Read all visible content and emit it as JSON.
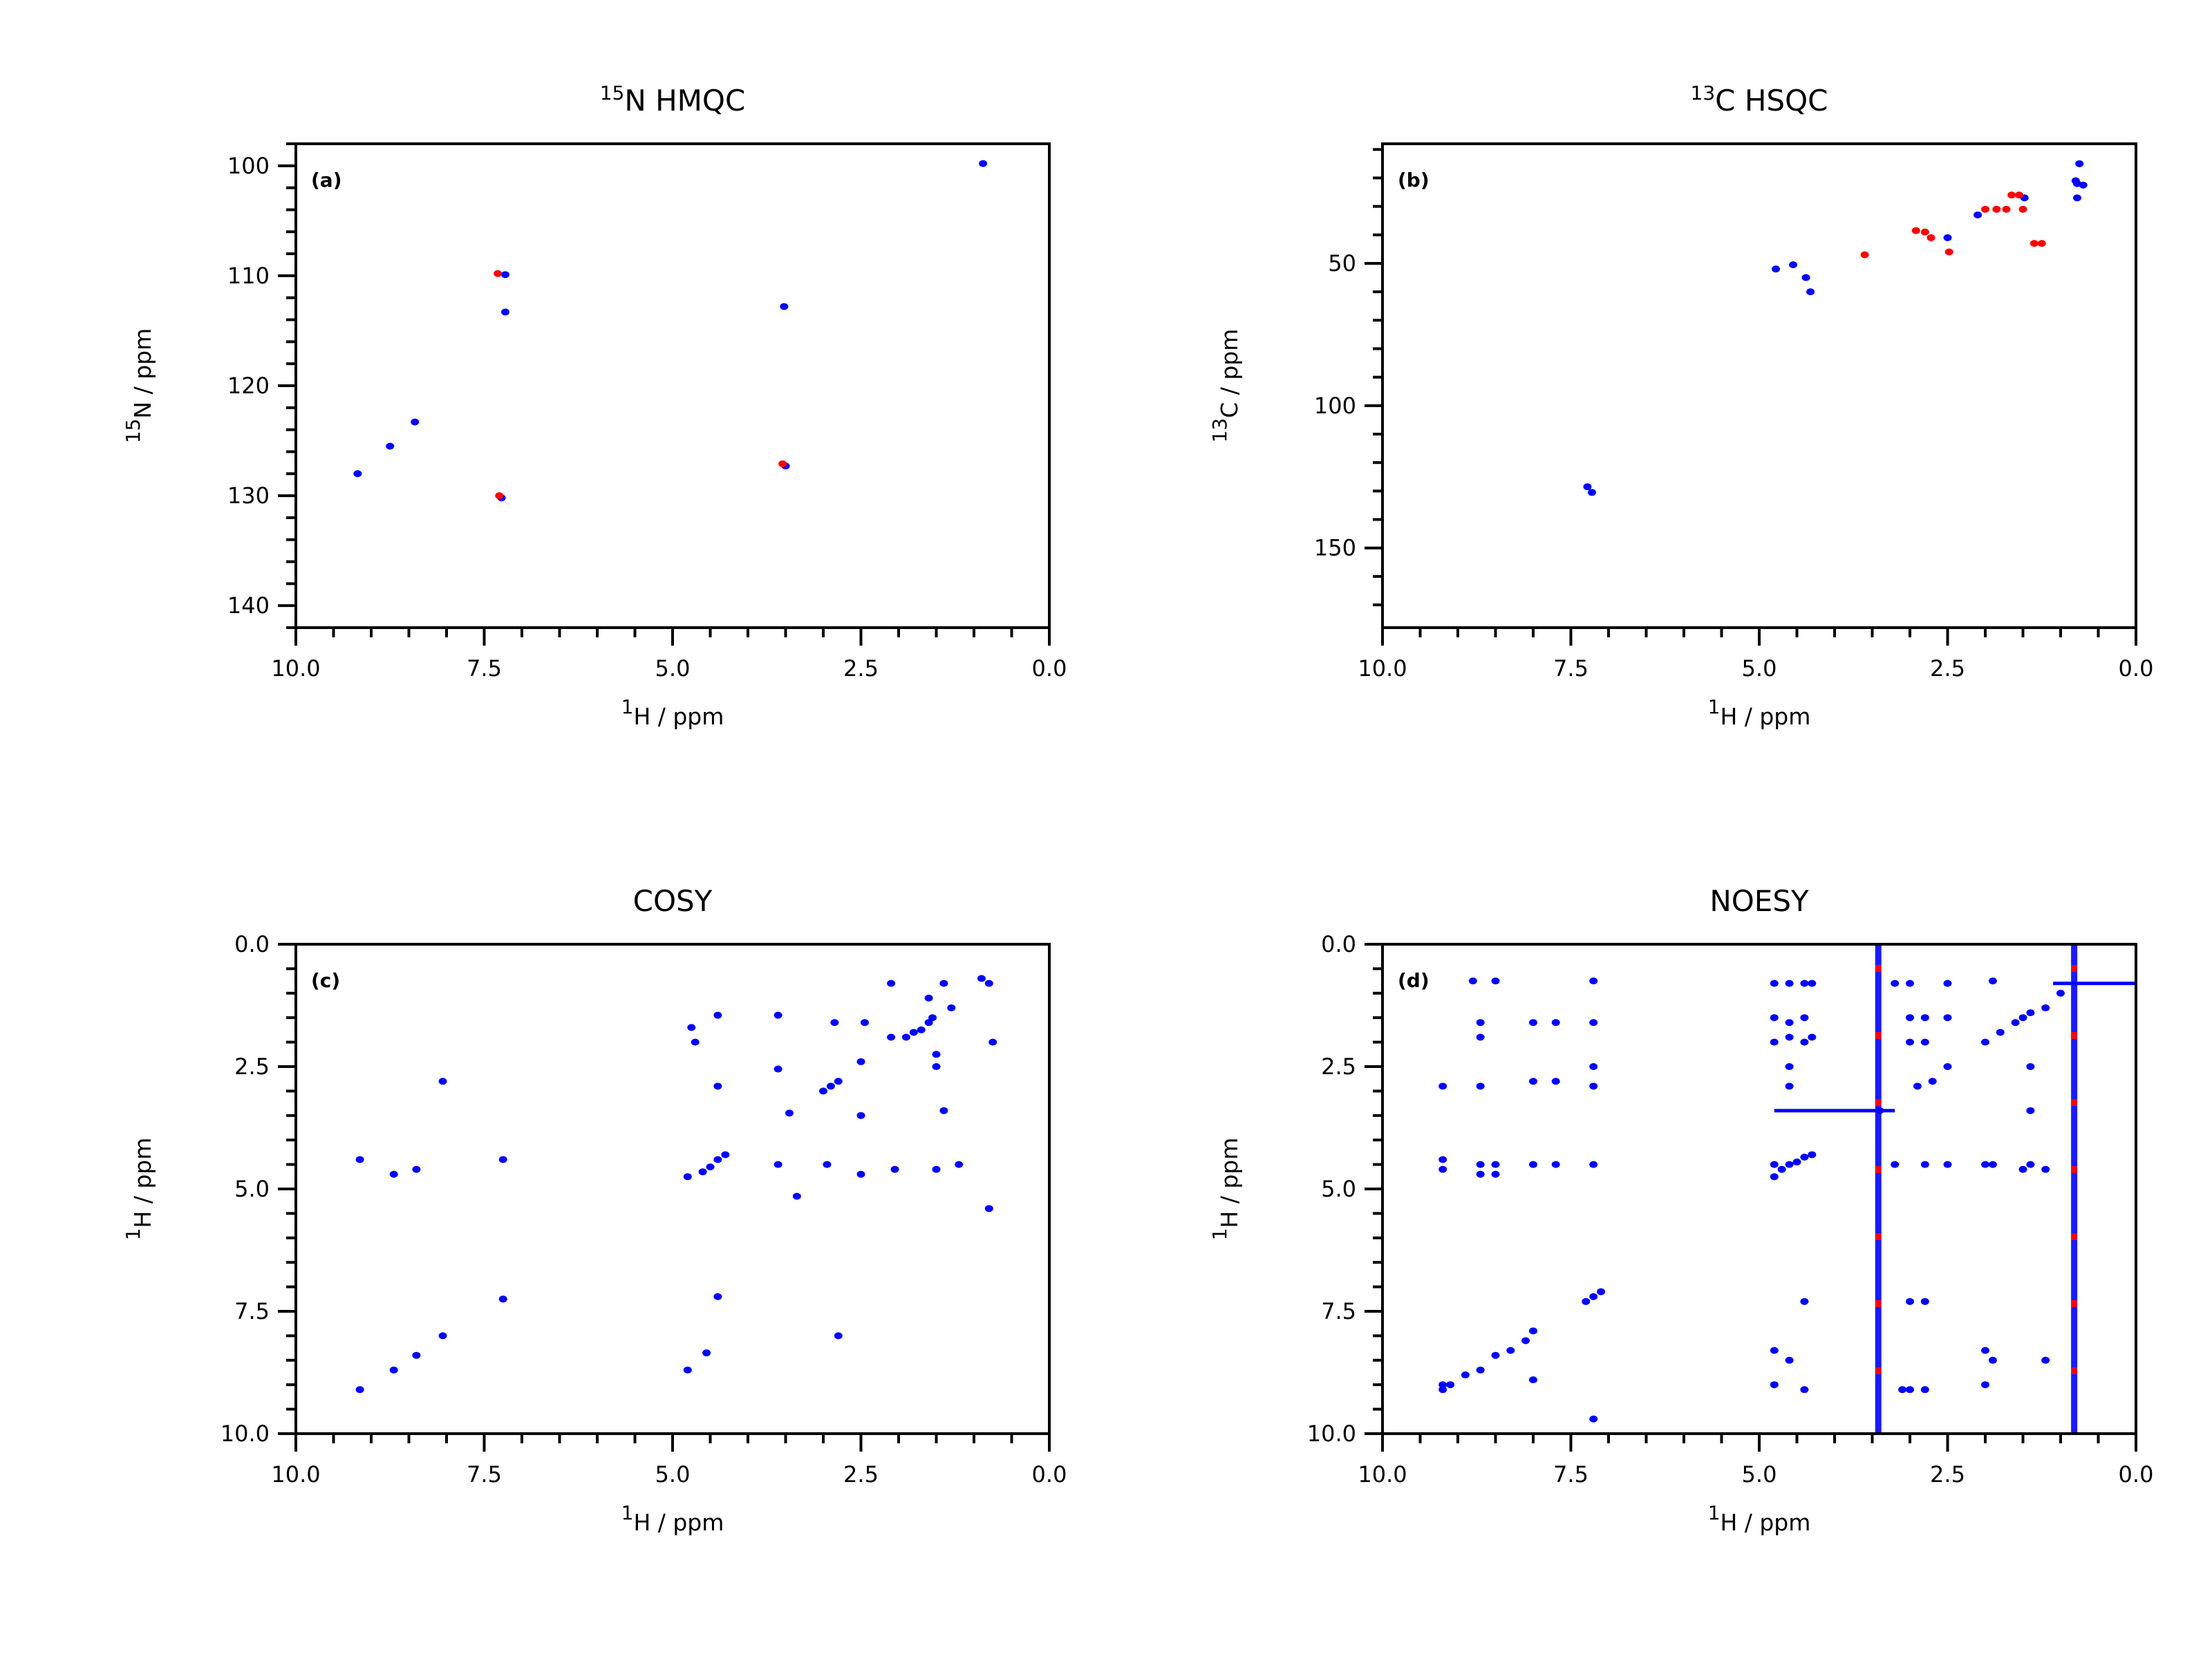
{
  "chart_data": [
    {
      "type": "scatter",
      "panel_label": "(a)",
      "title": {
        "sup": "15",
        "main": "N HMQC"
      },
      "xlabel": {
        "sup": "1",
        "main": "H / ppm"
      },
      "ylabel": {
        "sup": "15",
        "main": "N / ppm"
      },
      "xlim": [
        10.0,
        0.0
      ],
      "ylim": [
        142,
        98
      ],
      "xticks": [
        10.0,
        7.5,
        5.0,
        2.5,
        0.0
      ],
      "xtick_labels": [
        "10.0",
        "7.5",
        "5.0",
        "2.5",
        "0.0"
      ],
      "yticks": [
        100,
        110,
        120,
        130,
        140
      ],
      "ytick_labels": [
        "100",
        "110",
        "120",
        "130",
        "140"
      ],
      "ymajor_step": 10,
      "yminor_step": 2,
      "series": [
        {
          "color": "#0000ff",
          "points": [
            [
              9.18,
              128.0
            ],
            [
              8.75,
              125.5
            ],
            [
              8.42,
              123.3
            ],
            [
              7.22,
              109.9
            ],
            [
              7.22,
              113.3
            ],
            [
              7.27,
              130.2
            ],
            [
              3.52,
              112.8
            ],
            [
              3.5,
              127.3
            ],
            [
              0.88,
              99.8
            ]
          ]
        },
        {
          "color": "#ff0000",
          "points": [
            [
              7.32,
              109.8
            ],
            [
              7.3,
              130.0
            ],
            [
              3.54,
              127.1
            ]
          ]
        }
      ]
    },
    {
      "type": "scatter",
      "panel_label": "(b)",
      "title": {
        "sup": "13",
        "main": "C HSQC"
      },
      "xlabel": {
        "sup": "1",
        "main": "H / ppm"
      },
      "ylabel": {
        "sup": "13",
        "main": "C / ppm"
      },
      "xlim": [
        10.0,
        0.0
      ],
      "ylim": [
        178,
        8
      ],
      "xticks": [
        10.0,
        7.5,
        5.0,
        2.5,
        0.0
      ],
      "xtick_labels": [
        "10.0",
        "7.5",
        "5.0",
        "2.5",
        "0.0"
      ],
      "yticks": [
        50,
        100,
        150
      ],
      "ytick_labels": [
        "50",
        "100",
        "150"
      ],
      "ymajor_step": 50,
      "yminor_step": 10,
      "series": [
        {
          "color": "#0000ff",
          "points": [
            [
              7.28,
              128.5
            ],
            [
              7.22,
              130.5
            ],
            [
              4.78,
              52.0
            ],
            [
              4.55,
              50.5
            ],
            [
              4.38,
              55.0
            ],
            [
              4.32,
              60.0
            ],
            [
              2.5,
              41.0
            ],
            [
              2.1,
              33.0
            ],
            [
              1.48,
              27.0
            ],
            [
              0.78,
              22.0
            ],
            [
              0.78,
              27.0
            ],
            [
              0.8,
              21.0
            ],
            [
              0.7,
              22.5
            ],
            [
              0.75,
              15.0
            ]
          ]
        },
        {
          "color": "#ff0000",
          "points": [
            [
              3.6,
              47.0
            ],
            [
              2.92,
              38.5
            ],
            [
              2.8,
              39.0
            ],
            [
              2.72,
              41.0
            ],
            [
              2.48,
              46.0
            ],
            [
              2.0,
              31.0
            ],
            [
              1.85,
              31.0
            ],
            [
              1.72,
              31.0
            ],
            [
              1.65,
              26.0
            ],
            [
              1.55,
              26.0
            ],
            [
              1.5,
              31.0
            ],
            [
              1.35,
              43.0
            ],
            [
              1.25,
              43.0
            ]
          ]
        }
      ]
    },
    {
      "type": "scatter",
      "panel_label": "(c)",
      "title": {
        "sup": "",
        "main": "COSY"
      },
      "xlabel": {
        "sup": "1",
        "main": "H / ppm"
      },
      "ylabel": {
        "sup": "1",
        "main": "H / ppm"
      },
      "xlim": [
        10.0,
        0.0
      ],
      "ylim": [
        10.0,
        0.0
      ],
      "xticks": [
        10.0,
        7.5,
        5.0,
        2.5,
        0.0
      ],
      "xtick_labels": [
        "10.0",
        "7.5",
        "5.0",
        "2.5",
        "0.0"
      ],
      "yticks": [
        0.0,
        2.5,
        5.0,
        7.5,
        10.0
      ],
      "ytick_labels": [
        "0.0",
        "2.5",
        "5.0",
        "7.5",
        "10.0"
      ],
      "ymajor_step": 2.5,
      "yminor_step": 0.5,
      "series": [
        {
          "color": "#0000ff",
          "points": [
            [
              9.15,
              9.1
            ],
            [
              9.15,
              4.4
            ],
            [
              8.7,
              8.7
            ],
            [
              8.7,
              4.7
            ],
            [
              8.4,
              8.4
            ],
            [
              8.4,
              4.6
            ],
            [
              8.05,
              8.0
            ],
            [
              8.05,
              2.8
            ],
            [
              7.25,
              7.25
            ],
            [
              7.25,
              4.4
            ],
            [
              4.8,
              4.75
            ],
            [
              4.8,
              8.7
            ],
            [
              4.75,
              1.7
            ],
            [
              4.7,
              2.0
            ],
            [
              4.6,
              4.65
            ],
            [
              4.5,
              4.55
            ],
            [
              4.4,
              4.4
            ],
            [
              4.4,
              7.2
            ],
            [
              4.4,
              2.9
            ],
            [
              4.55,
              8.35
            ],
            [
              4.4,
              1.45
            ],
            [
              4.3,
              4.3
            ],
            [
              3.6,
              1.45
            ],
            [
              3.6,
              2.55
            ],
            [
              3.6,
              4.5
            ],
            [
              3.45,
              3.45
            ],
            [
              3.35,
              5.15
            ],
            [
              3.0,
              3.0
            ],
            [
              2.9,
              2.9
            ],
            [
              2.8,
              2.8
            ],
            [
              2.8,
              8.0
            ],
            [
              2.85,
              1.6
            ],
            [
              2.95,
              4.5
            ],
            [
              2.5,
              2.4
            ],
            [
              2.45,
              1.6
            ],
            [
              2.5,
              3.5
            ],
            [
              2.5,
              4.7
            ],
            [
              2.1,
              0.8
            ],
            [
              2.1,
              1.9
            ],
            [
              2.05,
              4.6
            ],
            [
              1.9,
              1.9
            ],
            [
              1.8,
              1.8
            ],
            [
              1.7,
              1.75
            ],
            [
              1.6,
              1.6
            ],
            [
              1.55,
              1.5
            ],
            [
              1.5,
              2.25
            ],
            [
              1.5,
              2.5
            ],
            [
              1.4,
              0.8
            ],
            [
              1.3,
              1.3
            ],
            [
              1.6,
              1.1
            ],
            [
              1.5,
              4.6
            ],
            [
              1.2,
              4.5
            ],
            [
              1.4,
              3.4
            ],
            [
              0.8,
              0.8
            ],
            [
              0.75,
              2.0
            ],
            [
              0.8,
              5.4
            ],
            [
              0.9,
              0.7
            ]
          ]
        }
      ]
    },
    {
      "type": "scatter",
      "panel_label": "(d)",
      "title": {
        "sup": "",
        "main": "NOESY"
      },
      "xlabel": {
        "sup": "1",
        "main": "H / ppm"
      },
      "ylabel": {
        "sup": "1",
        "main": "H / ppm"
      },
      "xlim": [
        10.0,
        0.0
      ],
      "ylim": [
        10.0,
        0.0
      ],
      "xticks": [
        10.0,
        7.5,
        5.0,
        2.5,
        0.0
      ],
      "xtick_labels": [
        "10.0",
        "7.5",
        "5.0",
        "2.5",
        "0.0"
      ],
      "yticks": [
        0.0,
        2.5,
        5.0,
        7.5,
        10.0
      ],
      "ytick_labels": [
        "0.0",
        "2.5",
        "5.0",
        "7.5",
        "10.0"
      ],
      "ymajor_step": 2.5,
      "yminor_step": 0.5,
      "vertical_streaks_ppm": [
        3.42,
        0.82
      ],
      "series": [
        {
          "color": "#0000ff",
          "points": [
            [
              9.2,
              9.1
            ],
            [
              9.1,
              9.0
            ],
            [
              8.9,
              8.8
            ],
            [
              8.7,
              8.7
            ],
            [
              8.5,
              8.4
            ],
            [
              8.3,
              8.3
            ],
            [
              8.1,
              8.1
            ],
            [
              8.0,
              7.9
            ],
            [
              7.3,
              7.3
            ],
            [
              7.2,
              7.2
            ],
            [
              7.1,
              7.1
            ],
            [
              9.2,
              2.9
            ],
            [
              9.2,
              4.4
            ],
            [
              9.2,
              4.6
            ],
            [
              9.2,
              9.0
            ],
            [
              8.8,
              0.75
            ],
            [
              8.7,
              1.6
            ],
            [
              8.7,
              1.9
            ],
            [
              8.7,
              2.9
            ],
            [
              8.7,
              4.5
            ],
            [
              8.7,
              4.7
            ],
            [
              8.5,
              0.75
            ],
            [
              8.5,
              4.5
            ],
            [
              8.5,
              4.7
            ],
            [
              8.0,
              1.6
            ],
            [
              8.0,
              2.8
            ],
            [
              8.0,
              4.5
            ],
            [
              8.0,
              8.9
            ],
            [
              7.7,
              1.6
            ],
            [
              7.7,
              2.8
            ],
            [
              7.7,
              4.5
            ],
            [
              7.2,
              0.75
            ],
            [
              7.2,
              1.6
            ],
            [
              7.2,
              2.5
            ],
            [
              7.2,
              2.9
            ],
            [
              7.2,
              4.5
            ],
            [
              7.2,
              9.7
            ],
            [
              4.8,
              4.75
            ],
            [
              4.7,
              4.6
            ],
            [
              4.6,
              4.5
            ],
            [
              4.5,
              4.45
            ],
            [
              4.4,
              4.35
            ],
            [
              4.3,
              4.3
            ],
            [
              4.8,
              0.8
            ],
            [
              4.8,
              1.5
            ],
            [
              4.8,
              2.0
            ],
            [
              4.8,
              4.5
            ],
            [
              4.8,
              8.3
            ],
            [
              4.8,
              9.0
            ],
            [
              4.6,
              0.8
            ],
            [
              4.6,
              1.6
            ],
            [
              4.6,
              1.9
            ],
            [
              4.6,
              2.5
            ],
            [
              4.6,
              2.9
            ],
            [
              4.6,
              8.5
            ],
            [
              4.4,
              0.8
            ],
            [
              4.4,
              1.5
            ],
            [
              4.4,
              2.0
            ],
            [
              4.4,
              7.3
            ],
            [
              4.4,
              9.1
            ],
            [
              4.3,
              0.8
            ],
            [
              4.3,
              1.9
            ],
            [
              3.4,
              3.4
            ],
            [
              2.9,
              2.9
            ],
            [
              2.7,
              2.8
            ],
            [
              2.5,
              2.5
            ],
            [
              2.0,
              2.0
            ],
            [
              1.8,
              1.8
            ],
            [
              1.6,
              1.6
            ],
            [
              1.5,
              1.5
            ],
            [
              1.4,
              1.4
            ],
            [
              1.2,
              1.3
            ],
            [
              1.0,
              1.0
            ],
            [
              3.0,
              0.8
            ],
            [
              3.0,
              1.5
            ],
            [
              3.0,
              2.0
            ],
            [
              3.0,
              7.3
            ],
            [
              3.0,
              9.1
            ],
            [
              2.8,
              1.5
            ],
            [
              2.8,
              2.0
            ],
            [
              2.8,
              4.5
            ],
            [
              2.8,
              7.3
            ],
            [
              2.8,
              9.1
            ],
            [
              2.5,
              0.8
            ],
            [
              2.5,
              1.5
            ],
            [
              2.5,
              4.5
            ],
            [
              2.0,
              4.5
            ],
            [
              2.0,
              8.3
            ],
            [
              2.0,
              9.0
            ],
            [
              1.9,
              0.75
            ],
            [
              1.9,
              4.5
            ],
            [
              1.9,
              8.5
            ],
            [
              1.5,
              4.6
            ],
            [
              1.4,
              2.5
            ],
            [
              1.4,
              3.4
            ],
            [
              1.4,
              4.5
            ],
            [
              1.2,
              4.6
            ],
            [
              1.2,
              8.5
            ],
            [
              3.2,
              4.5
            ],
            [
              3.2,
              0.8
            ],
            [
              3.1,
              9.1
            ]
          ]
        }
      ]
    }
  ]
}
